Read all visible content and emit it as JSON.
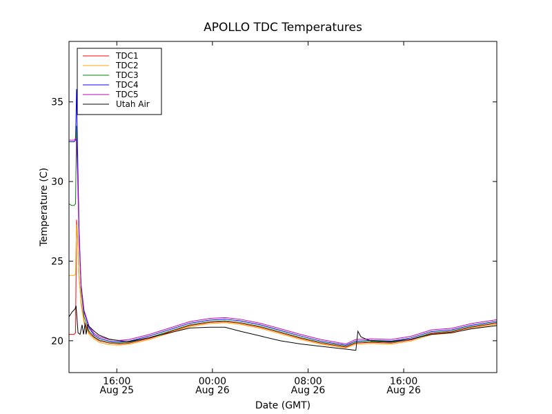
{
  "chart_data": {
    "type": "line",
    "title": "APOLLO TDC Temperatures",
    "xlabel": "Date (GMT)",
    "ylabel": "Temperature (C)",
    "x_unit": "hours since Aug 25 12:00 GMT",
    "xlim": [
      0,
      42.5
    ],
    "ylim": [
      18,
      38.8
    ],
    "yticks": [
      20,
      25,
      30,
      35
    ],
    "xticks": [
      {
        "x": 4.75,
        "time": "16:00",
        "date": "Aug 25"
      },
      {
        "x": 14.25,
        "time": "00:00",
        "date": "Aug 26"
      },
      {
        "x": 23.75,
        "time": "08:00",
        "date": "Aug 26"
      },
      {
        "x": 33.25,
        "time": "16:00",
        "date": "Aug 26"
      }
    ],
    "grid": false,
    "legend_position": "top-left",
    "series": [
      {
        "name": "TDC1",
        "color": "#ff0000",
        "x": [
          0,
          0.25,
          0.5,
          0.65,
          0.75,
          0.85,
          1.0,
          1.2,
          1.5,
          2.0,
          2.5,
          3.0,
          4.0,
          5.0,
          6.0,
          8.0,
          10.0,
          12.0,
          14.0,
          15.5,
          17.0,
          19.0,
          21.0,
          23.0,
          25.0,
          27.5,
          28.5,
          30.0,
          32.0,
          34.0,
          36.0,
          38.0,
          40.0,
          42.5
        ],
        "y": [
          20.4,
          20.4,
          20.4,
          20.5,
          27.6,
          26.5,
          24.0,
          22.4,
          21.2,
          20.5,
          20.2,
          20.0,
          19.85,
          19.8,
          19.85,
          20.15,
          20.55,
          20.95,
          21.15,
          21.2,
          21.1,
          20.85,
          20.5,
          20.15,
          19.85,
          19.6,
          19.85,
          19.9,
          19.85,
          20.05,
          20.45,
          20.55,
          20.85,
          21.1
        ]
      },
      {
        "name": "TDC2",
        "color": "#ffa500",
        "x": [
          0,
          0.25,
          0.5,
          0.65,
          0.75,
          0.85,
          1.0,
          1.2,
          1.5,
          2.0,
          2.5,
          3.0,
          4.0,
          5.0,
          6.0,
          8.0,
          10.0,
          12.0,
          14.0,
          15.5,
          17.0,
          19.0,
          21.0,
          23.0,
          25.0,
          27.5,
          28.5,
          30.0,
          32.0,
          34.0,
          36.0,
          38.0,
          40.0,
          42.5
        ],
        "y": [
          24.1,
          24.1,
          24.1,
          24.2,
          27.3,
          26.4,
          24.0,
          22.3,
          21.1,
          20.4,
          20.1,
          19.9,
          19.75,
          19.72,
          19.78,
          20.08,
          20.48,
          20.88,
          21.08,
          21.13,
          21.03,
          20.78,
          20.43,
          20.08,
          19.78,
          19.55,
          19.78,
          19.83,
          19.78,
          19.98,
          20.38,
          20.48,
          20.78,
          21.02
        ]
      },
      {
        "name": "TDC3",
        "color": "#008000",
        "x": [
          0,
          0.25,
          0.5,
          0.65,
          0.75,
          0.85,
          1.0,
          1.2,
          1.5,
          2.0,
          2.5,
          3.0,
          4.0,
          5.0,
          6.0,
          8.0,
          10.0,
          12.0,
          14.0,
          15.5,
          17.0,
          19.0,
          21.0,
          23.0,
          25.0,
          27.5,
          28.5,
          30.0,
          32.0,
          34.0,
          36.0,
          38.0,
          40.0,
          42.5
        ],
        "y": [
          28.6,
          28.5,
          28.5,
          28.6,
          33.5,
          31.0,
          26.5,
          23.2,
          21.5,
          20.6,
          20.25,
          20.05,
          19.9,
          19.85,
          19.9,
          20.2,
          20.6,
          21.0,
          21.2,
          21.25,
          21.15,
          20.9,
          20.55,
          20.2,
          19.9,
          19.65,
          19.9,
          19.95,
          19.9,
          20.1,
          20.5,
          20.6,
          20.9,
          21.15
        ]
      },
      {
        "name": "TDC4",
        "color": "#0000ff",
        "x": [
          0,
          0.25,
          0.5,
          0.65,
          0.75,
          0.85,
          1.0,
          1.2,
          1.5,
          2.0,
          2.5,
          3.0,
          4.0,
          5.0,
          6.0,
          8.0,
          10.0,
          12.0,
          14.0,
          15.5,
          17.0,
          19.0,
          21.0,
          23.0,
          25.0,
          27.5,
          28.5,
          30.0,
          32.0,
          34.0,
          36.0,
          38.0,
          40.0,
          42.5
        ],
        "y": [
          32.5,
          32.5,
          32.5,
          32.6,
          35.8,
          32.0,
          27.0,
          23.5,
          21.8,
          20.8,
          20.35,
          20.15,
          19.98,
          19.92,
          19.98,
          20.3,
          20.7,
          21.1,
          21.3,
          21.35,
          21.25,
          21.0,
          20.65,
          20.3,
          19.98,
          19.72,
          19.98,
          20.02,
          19.98,
          20.18,
          20.58,
          20.68,
          20.98,
          21.22
        ]
      },
      {
        "name": "TDC5",
        "color": "#bf00bf",
        "x": [
          0,
          0.25,
          0.5,
          0.65,
          0.75,
          0.85,
          1.0,
          1.2,
          1.5,
          2.0,
          2.5,
          3.0,
          4.0,
          5.0,
          6.0,
          8.0,
          10.0,
          12.0,
          14.0,
          15.5,
          17.0,
          19.0,
          21.0,
          23.0,
          25.0,
          27.5,
          28.5,
          30.0,
          32.0,
          34.0,
          36.0,
          38.0,
          40.0,
          42.5
        ],
        "y": [
          32.6,
          32.6,
          32.6,
          32.7,
          32.5,
          30.5,
          26.5,
          23.5,
          21.9,
          20.9,
          20.45,
          20.25,
          20.08,
          20.02,
          20.08,
          20.4,
          20.8,
          21.2,
          21.4,
          21.45,
          21.35,
          21.1,
          20.75,
          20.4,
          20.08,
          19.8,
          20.08,
          20.12,
          20.08,
          20.28,
          20.68,
          20.78,
          21.08,
          21.32
        ]
      },
      {
        "name": "Utah Air",
        "color": "#000000",
        "x": [
          0,
          0.3,
          0.6,
          0.7,
          0.9,
          1.1,
          1.3,
          1.45,
          1.6,
          1.7,
          1.85,
          2.0,
          2.5,
          3.0,
          4.0,
          5.0,
          6.0,
          8.0,
          10.0,
          12.0,
          14.0,
          15.5,
          17.0,
          19.0,
          21.0,
          23.0,
          25.0,
          28.5,
          28.7,
          29.0,
          29.5,
          30.0,
          32.0,
          34.0,
          36.0,
          38.0,
          40.0,
          42.5
        ],
        "y": [
          21.5,
          21.8,
          22.0,
          22.2,
          20.5,
          20.4,
          21.0,
          20.4,
          21.1,
          20.4,
          21.0,
          20.9,
          20.6,
          20.35,
          20.1,
          20.0,
          19.95,
          20.2,
          20.5,
          20.8,
          20.85,
          20.85,
          20.6,
          20.3,
          20.0,
          19.8,
          19.65,
          19.4,
          20.6,
          20.25,
          20.1,
          20.0,
          19.95,
          20.1,
          20.4,
          20.5,
          20.75,
          20.95
        ]
      }
    ]
  }
}
